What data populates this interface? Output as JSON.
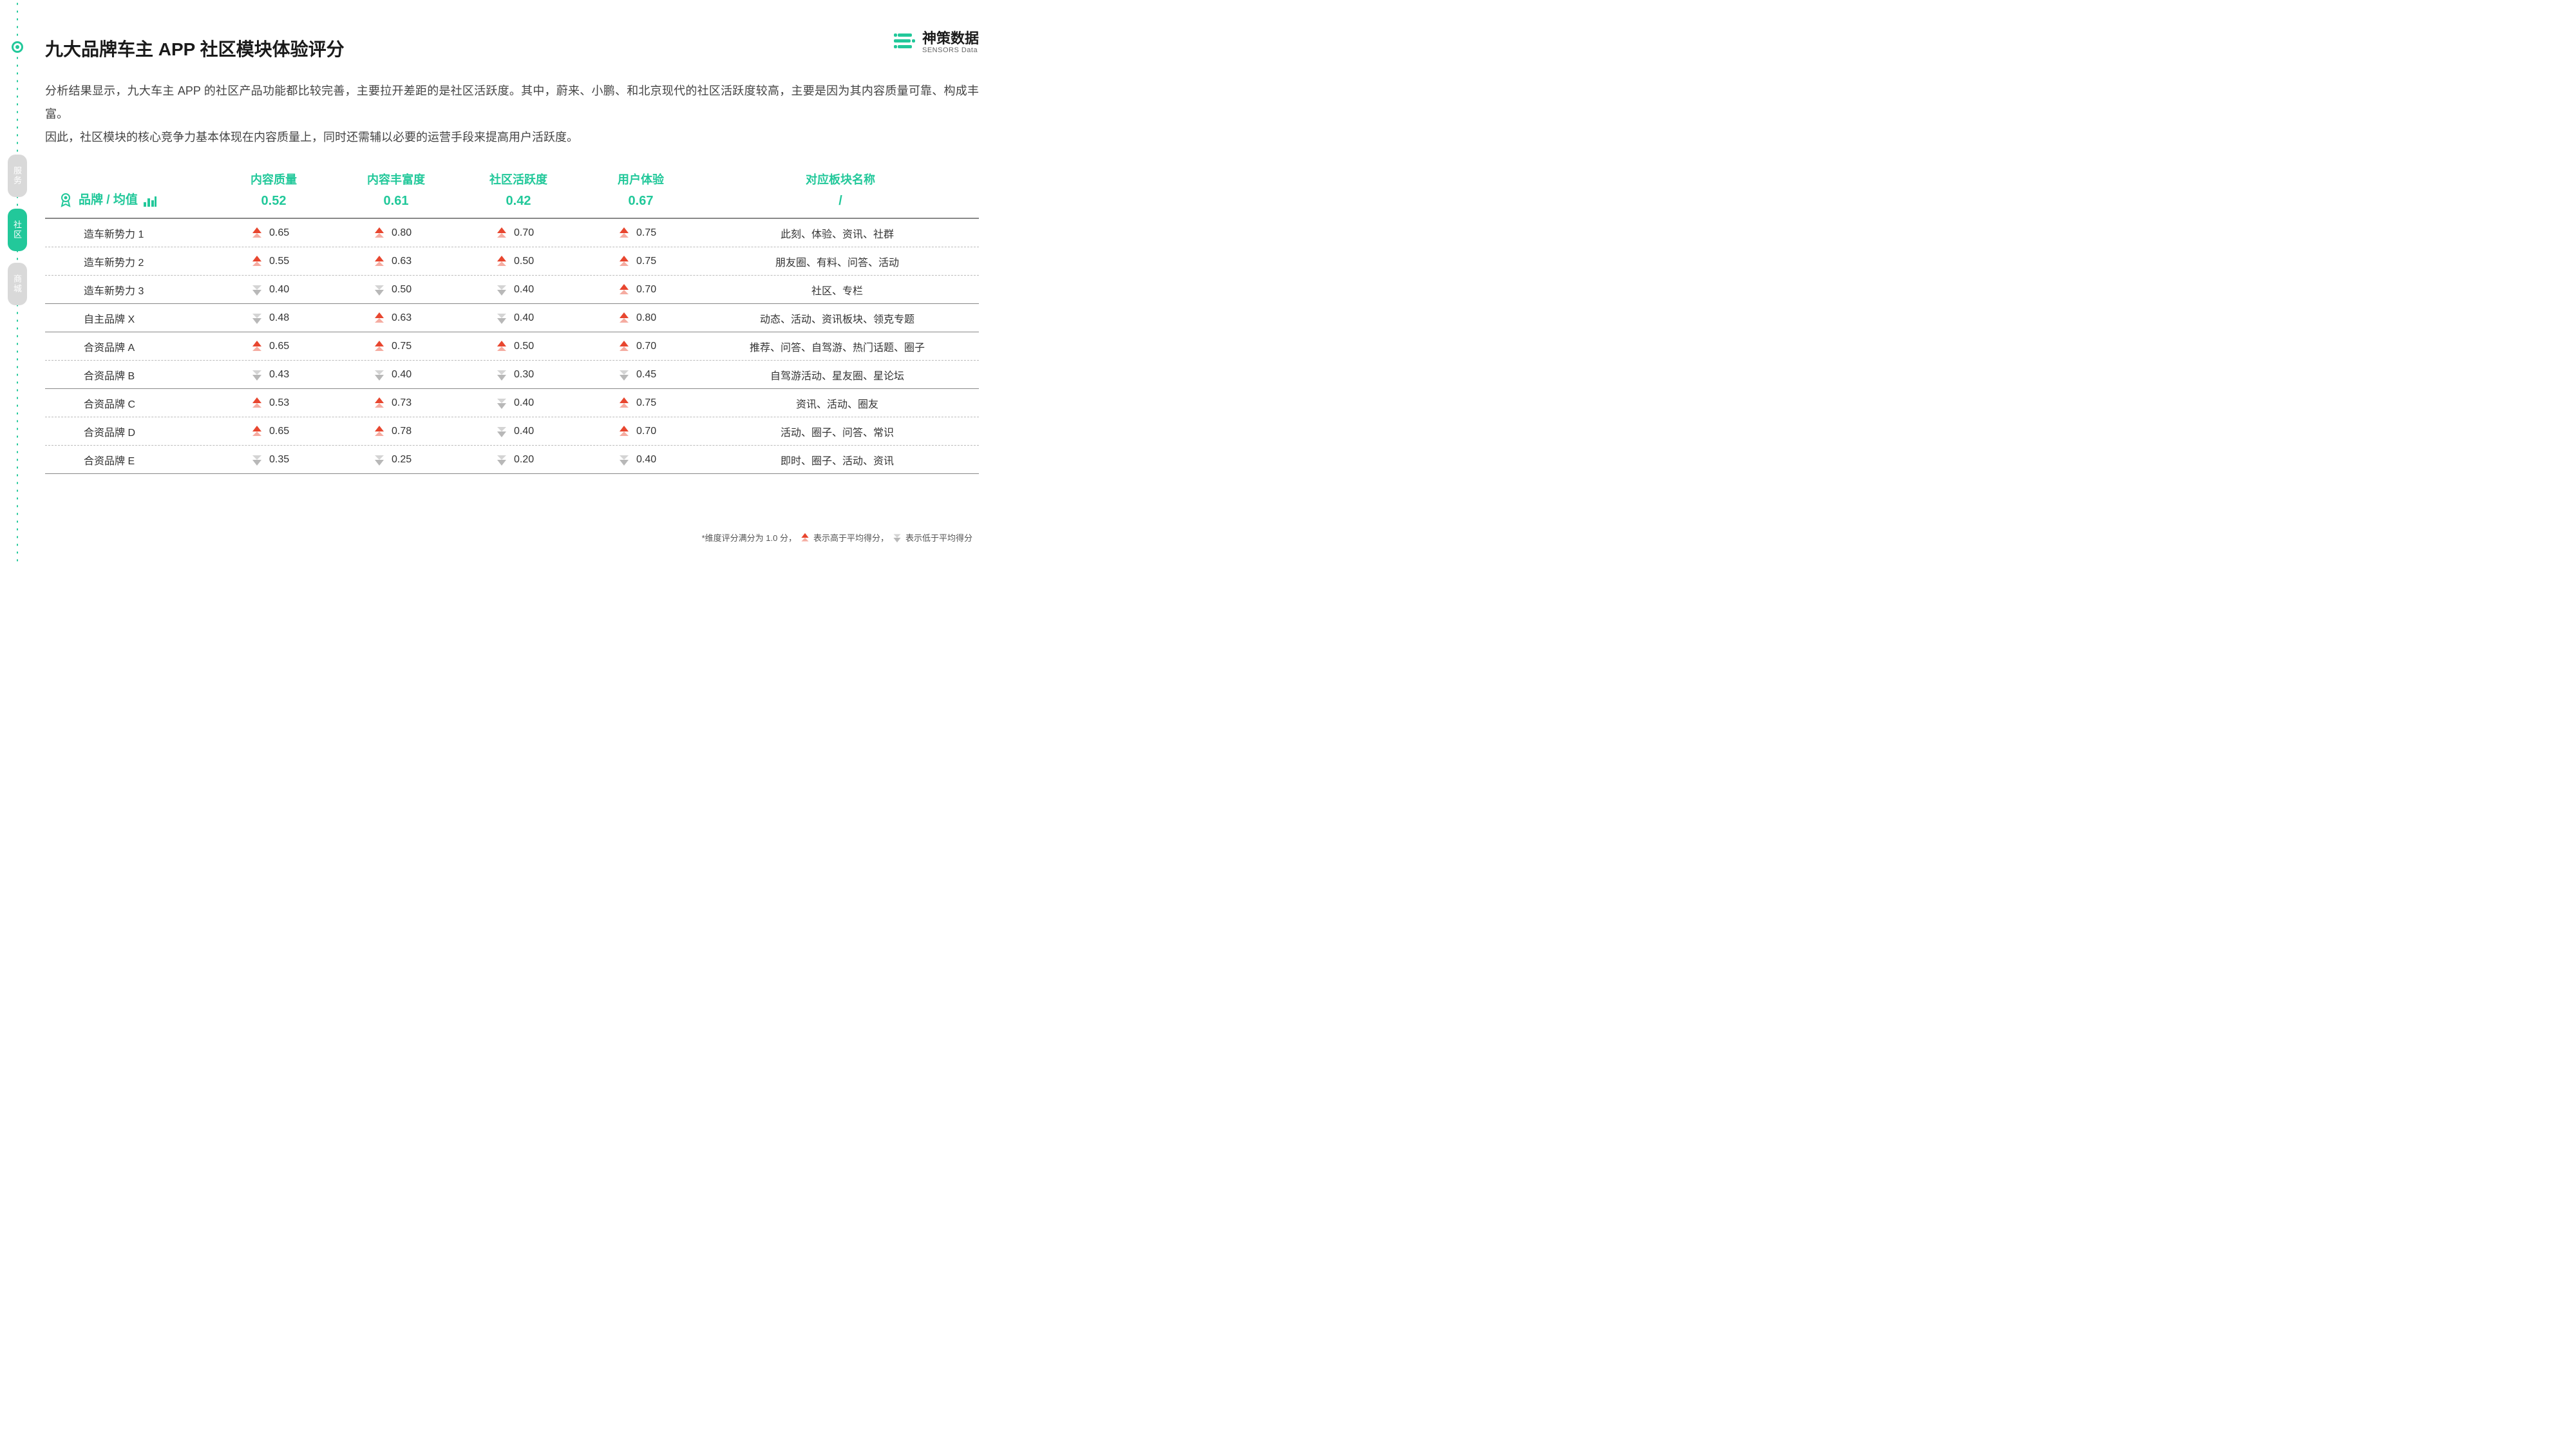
{
  "colors": {
    "accent": "#22c89a",
    "up": "#e8462f",
    "down": "#b8b8b8",
    "text": "#333333",
    "border": "#888888"
  },
  "logo": {
    "cn": "神策数据",
    "en": "SENSORS Data"
  },
  "title": "九大品牌车主 APP 社区模块体验评分",
  "description": "分析结果显示，九大车主 APP 的社区产品功能都比较完善，主要拉开差距的是社区活跃度。其中，蔚来、小鹏、和北京现代的社区活跃度较高，主要是因为其内容质量可靠、构成丰富。\n因此，社区模块的核心竞争力基本体现在内容质量上，同时还需辅以必要的运营手段来提高用户活跃度。",
  "side_tabs": [
    {
      "label": "服务",
      "active": false
    },
    {
      "label": "社区",
      "active": true
    },
    {
      "label": "商城",
      "active": false
    }
  ],
  "table": {
    "brand_header": "品牌 / 均值",
    "columns": [
      {
        "label": "内容质量",
        "avg": "0.52"
      },
      {
        "label": "内容丰富度",
        "avg": "0.61"
      },
      {
        "label": "社区活跃度",
        "avg": "0.42"
      },
      {
        "label": "用户体验",
        "avg": "0.67"
      },
      {
        "label": "对应板块名称",
        "avg": "/"
      }
    ],
    "rows": [
      {
        "brand": "造车新势力 1",
        "vals": [
          {
            "v": "0.65",
            "d": "up"
          },
          {
            "v": "0.80",
            "d": "up"
          },
          {
            "v": "0.70",
            "d": "up"
          },
          {
            "v": "0.75",
            "d": "up"
          }
        ],
        "section": "此刻、体验、资讯、社群",
        "group_end": false
      },
      {
        "brand": "造车新势力 2",
        "vals": [
          {
            "v": "0.55",
            "d": "up"
          },
          {
            "v": "0.63",
            "d": "up"
          },
          {
            "v": "0.50",
            "d": "up"
          },
          {
            "v": "0.75",
            "d": "up"
          }
        ],
        "section": "朋友圈、有料、问答、活动",
        "group_end": false
      },
      {
        "brand": "造车新势力 3",
        "vals": [
          {
            "v": "0.40",
            "d": "down"
          },
          {
            "v": "0.50",
            "d": "down"
          },
          {
            "v": "0.40",
            "d": "down"
          },
          {
            "v": "0.70",
            "d": "up"
          }
        ],
        "section": "社区、专栏",
        "group_end": true
      },
      {
        "brand": "自主品牌 X",
        "vals": [
          {
            "v": "0.48",
            "d": "down"
          },
          {
            "v": "0.63",
            "d": "up"
          },
          {
            "v": "0.40",
            "d": "down"
          },
          {
            "v": "0.80",
            "d": "up"
          }
        ],
        "section": "动态、活动、资讯板块、领克专题",
        "group_end": true
      },
      {
        "brand": "合资品牌 A",
        "vals": [
          {
            "v": "0.65",
            "d": "up"
          },
          {
            "v": "0.75",
            "d": "up"
          },
          {
            "v": "0.50",
            "d": "up"
          },
          {
            "v": "0.70",
            "d": "up"
          }
        ],
        "section": "推荐、问答、自驾游、热门话题、圈子",
        "group_end": false
      },
      {
        "brand": "合资品牌 B",
        "vals": [
          {
            "v": "0.43",
            "d": "down"
          },
          {
            "v": "0.40",
            "d": "down"
          },
          {
            "v": "0.30",
            "d": "down"
          },
          {
            "v": "0.45",
            "d": "down"
          }
        ],
        "section": "自驾游活动、星友圈、星论坛",
        "group_end": true
      },
      {
        "brand": "合资品牌 C",
        "vals": [
          {
            "v": "0.53",
            "d": "up"
          },
          {
            "v": "0.73",
            "d": "up"
          },
          {
            "v": "0.40",
            "d": "down"
          },
          {
            "v": "0.75",
            "d": "up"
          }
        ],
        "section": "资讯、活动、圈友",
        "group_end": false
      },
      {
        "brand": "合资品牌 D",
        "vals": [
          {
            "v": "0.65",
            "d": "up"
          },
          {
            "v": "0.78",
            "d": "up"
          },
          {
            "v": "0.40",
            "d": "down"
          },
          {
            "v": "0.70",
            "d": "up"
          }
        ],
        "section": "活动、圈子、问答、常识",
        "group_end": false
      },
      {
        "brand": "合资品牌 E",
        "vals": [
          {
            "v": "0.35",
            "d": "down"
          },
          {
            "v": "0.25",
            "d": "down"
          },
          {
            "v": "0.20",
            "d": "down"
          },
          {
            "v": "0.40",
            "d": "down"
          }
        ],
        "section": "即时、圈子、活动、资讯",
        "group_end": true
      }
    ]
  },
  "footnote": {
    "prefix": "*维度评分满分为 1.0 分，",
    "up_text": "表示高于平均得分，",
    "down_text": "表示低于平均得分"
  }
}
